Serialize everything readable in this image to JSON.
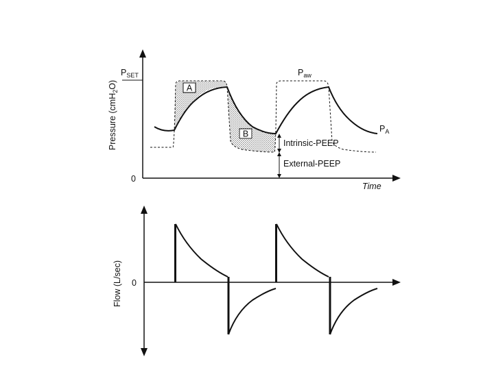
{
  "pressure_panel": {
    "y_axis_label": "Pressure (cmH",
    "y_axis_label_sub": "2",
    "y_axis_label_end": "O)",
    "pset_main": "P",
    "pset_sub": "SET",
    "zero_label": "0",
    "x_axis_label": "Time",
    "paw_main": "P",
    "paw_sub": "aw",
    "pa_main": "P",
    "pa_sub": "A",
    "region_a": "A",
    "region_b": "B",
    "intrinsic_peep": "Intrinsic-PEEP",
    "external_peep": "External-PEEP"
  },
  "flow_panel": {
    "y_axis_label": "Flow (L/sec)",
    "zero_label": "0"
  },
  "colors": {
    "ink": "#111111",
    "background": "#ffffff"
  }
}
